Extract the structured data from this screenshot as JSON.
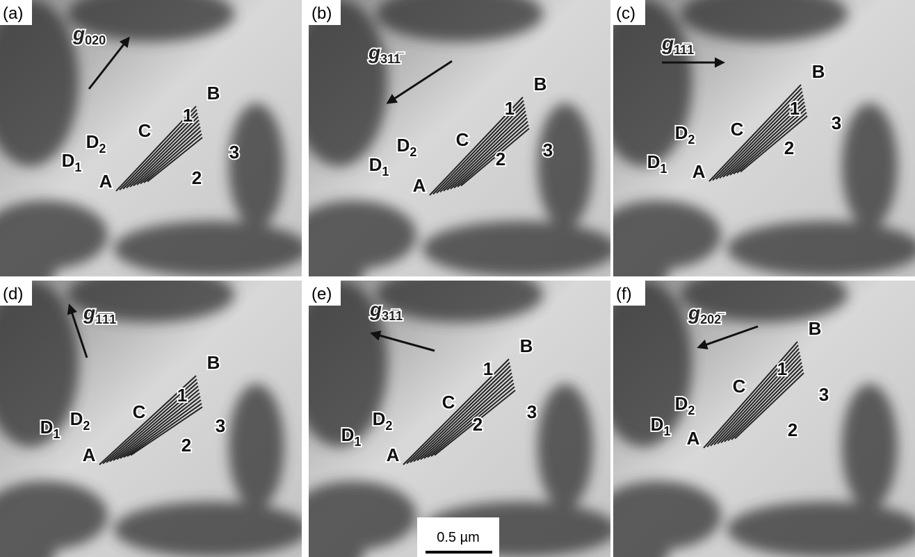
{
  "panels": [
    {
      "label": "(a)",
      "g": {
        "symbol": "g",
        "index": "020"
      },
      "points": [
        {
          "text": "A"
        },
        {
          "text": "B"
        },
        {
          "text": "C"
        },
        {
          "text": "D",
          "sub": "1"
        },
        {
          "text": "D",
          "sub": "2"
        },
        {
          "text": "1"
        },
        {
          "text": "2"
        },
        {
          "text": "3"
        }
      ]
    },
    {
      "label": "(b)",
      "g": {
        "symbol": "g",
        "index": "311̅"
      },
      "points": [
        {
          "text": "A"
        },
        {
          "text": "B"
        },
        {
          "text": "C"
        },
        {
          "text": "D",
          "sub": "1"
        },
        {
          "text": "D",
          "sub": "2"
        },
        {
          "text": "1"
        },
        {
          "text": "2"
        },
        {
          "text": "3"
        }
      ]
    },
    {
      "label": "(c)",
      "g": {
        "symbol": "g",
        "index": "11̅1"
      },
      "points": [
        {
          "text": "A"
        },
        {
          "text": "B"
        },
        {
          "text": "C"
        },
        {
          "text": "D",
          "sub": "1"
        },
        {
          "text": "D",
          "sub": "2"
        },
        {
          "text": "1"
        },
        {
          "text": "2"
        },
        {
          "text": "3"
        }
      ]
    },
    {
      "label": "(d)",
      "g": {
        "symbol": "g",
        "index": "1̅1̅1"
      },
      "points": [
        {
          "text": "A"
        },
        {
          "text": "B"
        },
        {
          "text": "C"
        },
        {
          "text": "D",
          "sub": "1"
        },
        {
          "text": "D",
          "sub": "2"
        },
        {
          "text": "1"
        },
        {
          "text": "2"
        },
        {
          "text": "3"
        }
      ]
    },
    {
      "label": "(e)",
      "g": {
        "symbol": "g",
        "index": "31̅1"
      },
      "points": [
        {
          "text": "A"
        },
        {
          "text": "B"
        },
        {
          "text": "C"
        },
        {
          "text": "D",
          "sub": "1"
        },
        {
          "text": "D",
          "sub": "2"
        },
        {
          "text": "1"
        },
        {
          "text": "2"
        },
        {
          "text": "3"
        }
      ]
    },
    {
      "label": "(f)",
      "g": {
        "symbol": "g",
        "index": "202̅"
      },
      "points": [
        {
          "text": "A"
        },
        {
          "text": "B"
        },
        {
          "text": "C"
        },
        {
          "text": "D",
          "sub": "1"
        },
        {
          "text": "D",
          "sub": "2"
        },
        {
          "text": "1"
        },
        {
          "text": "2"
        },
        {
          "text": "3"
        }
      ]
    }
  ],
  "scale_bar": {
    "label": "0.5 µm"
  }
}
